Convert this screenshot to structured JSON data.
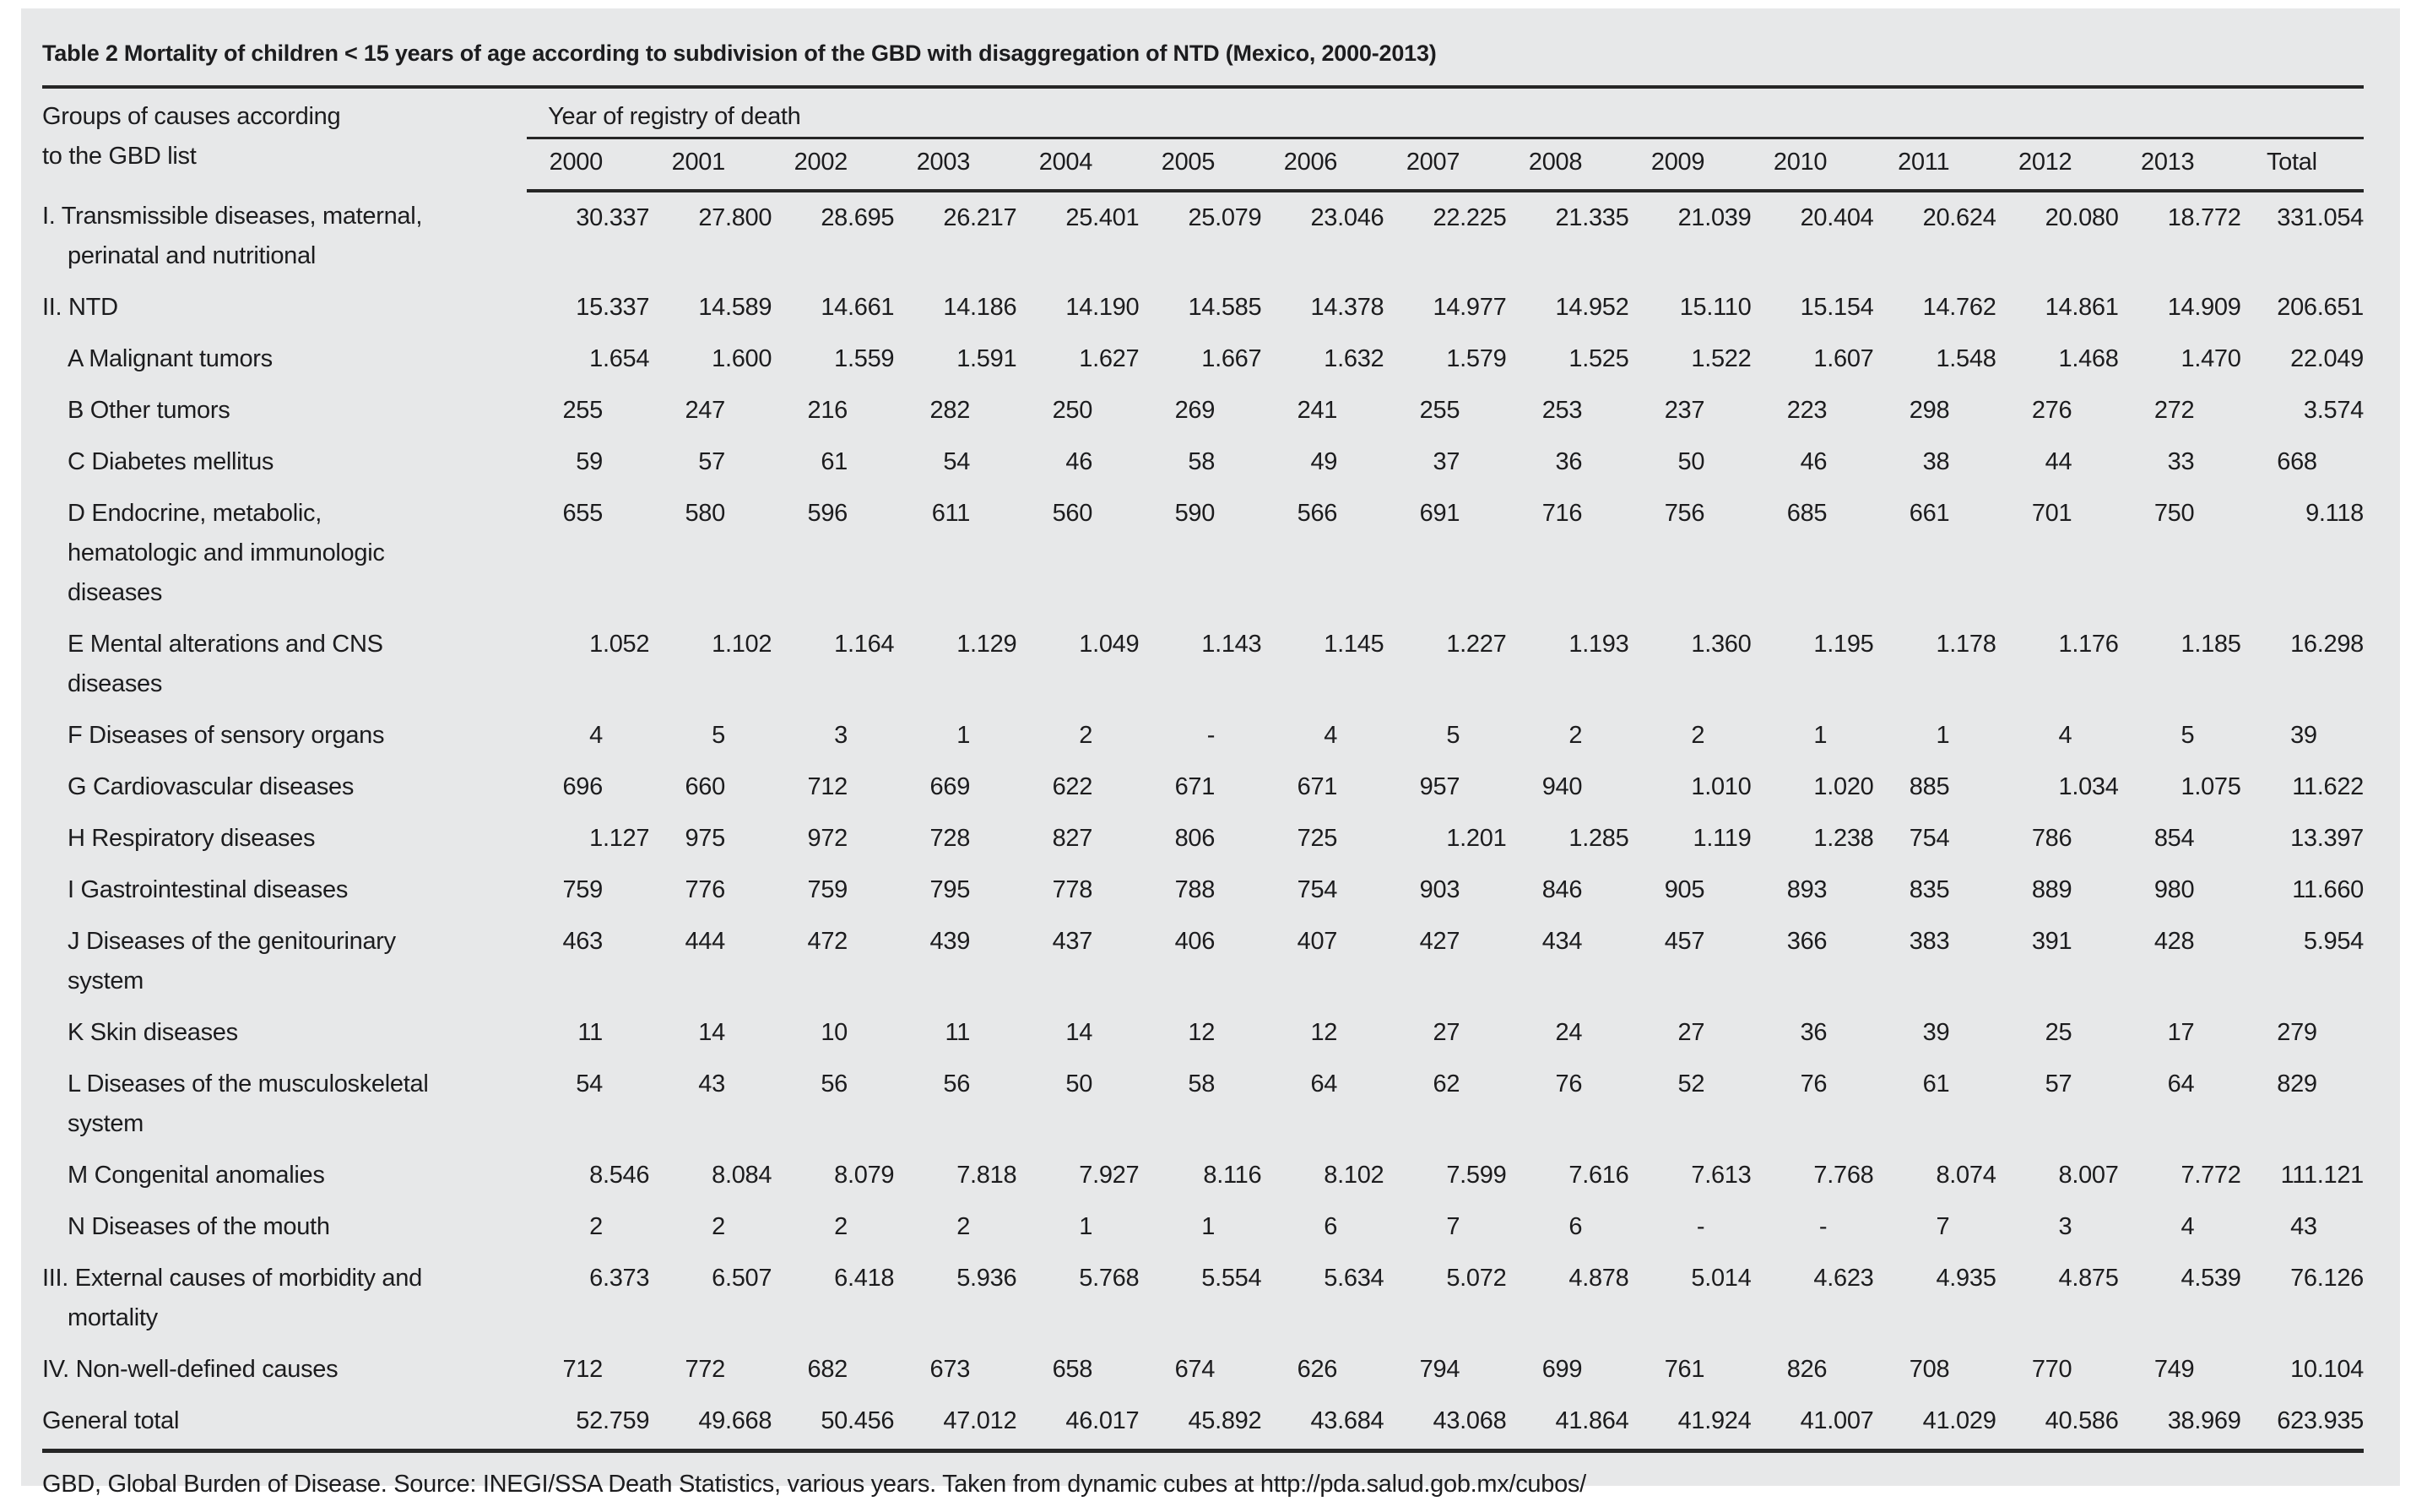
{
  "colors": {
    "page_bg": "#ffffff",
    "panel_bg": "#e7e8e9",
    "text": "#1c1c1e",
    "rule": "#262626"
  },
  "table": {
    "title": "Table 2 Mortality of children < 15 years of age according to subdivision of the GBD with disaggregation of NTD (Mexico, 2000-2013)",
    "row_header_line1": "Groups of causes according",
    "row_header_line2": "to the GBD list",
    "col_group_header": "Year of registry of death",
    "year_columns": [
      "2000",
      "2001",
      "2002",
      "2003",
      "2004",
      "2005",
      "2006",
      "2007",
      "2008",
      "2009",
      "2010",
      "2011",
      "2012",
      "2013",
      "Total"
    ],
    "rows": [
      {
        "level": "main",
        "lines": [
          "I. Transmissible diseases, maternal,",
          "perinatal and nutritional"
        ],
        "values": [
          "30.337",
          "27.800",
          "28.695",
          "26.217",
          "25.401",
          "25.079",
          "23.046",
          "22.225",
          "21.335",
          "21.039",
          "20.404",
          "20.624",
          "20.080",
          "18.772",
          "331.054"
        ]
      },
      {
        "level": "main",
        "lines": [
          "II. NTD"
        ],
        "values": [
          "15.337",
          "14.589",
          "14.661",
          "14.186",
          "14.190",
          "14.585",
          "14.378",
          "14.977",
          "14.952",
          "15.110",
          "15.154",
          "14.762",
          "14.861",
          "14.909",
          "206.651"
        ]
      },
      {
        "level": "sub",
        "lines": [
          "A Malignant tumors"
        ],
        "values": [
          "1.654",
          "1.600",
          "1.559",
          "1.591",
          "1.627",
          "1.667",
          "1.632",
          "1.579",
          "1.525",
          "1.522",
          "1.607",
          "1.548",
          "1.468",
          "1.470",
          "22.049"
        ]
      },
      {
        "level": "sub",
        "lines": [
          "B Other tumors"
        ],
        "values": [
          "255",
          "247",
          "216",
          "282",
          "250",
          "269",
          "241",
          "255",
          "253",
          "237",
          "223",
          "298",
          "276",
          "272",
          "3.574"
        ]
      },
      {
        "level": "sub",
        "lines": [
          "C Diabetes mellitus"
        ],
        "values": [
          "59",
          "57",
          "61",
          "54",
          "46",
          "58",
          "49",
          "37",
          "36",
          "50",
          "46",
          "38",
          "44",
          "33",
          "668"
        ]
      },
      {
        "level": "sub",
        "lines": [
          "D Endocrine, metabolic,",
          "hematologic and immunologic",
          "diseases"
        ],
        "values": [
          "655",
          "580",
          "596",
          "611",
          "560",
          "590",
          "566",
          "691",
          "716",
          "756",
          "685",
          "661",
          "701",
          "750",
          "9.118"
        ]
      },
      {
        "level": "sub",
        "lines": [
          "E Mental alterations and CNS",
          "diseases"
        ],
        "values": [
          "1.052",
          "1.102",
          "1.164",
          "1.129",
          "1.049",
          "1.143",
          "1.145",
          "1.227",
          "1.193",
          "1.360",
          "1.195",
          "1.178",
          "1.176",
          "1.185",
          "16.298"
        ]
      },
      {
        "level": "sub",
        "lines": [
          "F Diseases of sensory organs"
        ],
        "values": [
          "4",
          "5",
          "3",
          "1",
          "2",
          "-",
          "4",
          "5",
          "2",
          "2",
          "1",
          "1",
          "4",
          "5",
          "39"
        ]
      },
      {
        "level": "sub",
        "lines": [
          "G Cardiovascular diseases"
        ],
        "values": [
          "696",
          "660",
          "712",
          "669",
          "622",
          "671",
          "671",
          "957",
          "940",
          "1.010",
          "1.020",
          "885",
          "1.034",
          "1.075",
          "11.622"
        ]
      },
      {
        "level": "sub",
        "lines": [
          "H Respiratory diseases"
        ],
        "values": [
          "1.127",
          "975",
          "972",
          "728",
          "827",
          "806",
          "725",
          "1.201",
          "1.285",
          "1.119",
          "1.238",
          "754",
          "786",
          "854",
          "13.397"
        ]
      },
      {
        "level": "sub",
        "lines": [
          "I Gastrointestinal diseases"
        ],
        "values": [
          "759",
          "776",
          "759",
          "795",
          "778",
          "788",
          "754",
          "903",
          "846",
          "905",
          "893",
          "835",
          "889",
          "980",
          "11.660"
        ]
      },
      {
        "level": "sub",
        "lines": [
          "J Diseases of the genitourinary",
          "system"
        ],
        "values": [
          "463",
          "444",
          "472",
          "439",
          "437",
          "406",
          "407",
          "427",
          "434",
          "457",
          "366",
          "383",
          "391",
          "428",
          "5.954"
        ]
      },
      {
        "level": "sub",
        "lines": [
          "K Skin diseases"
        ],
        "values": [
          "11",
          "14",
          "10",
          "11",
          "14",
          "12",
          "12",
          "27",
          "24",
          "27",
          "36",
          "39",
          "25",
          "17",
          "279"
        ]
      },
      {
        "level": "sub",
        "lines": [
          "L Diseases of the musculoskeletal",
          "system"
        ],
        "values": [
          "54",
          "43",
          "56",
          "56",
          "50",
          "58",
          "64",
          "62",
          "76",
          "52",
          "76",
          "61",
          "57",
          "64",
          "829"
        ]
      },
      {
        "level": "sub",
        "lines": [
          "M Congenital anomalies"
        ],
        "values": [
          "8.546",
          "8.084",
          "8.079",
          "7.818",
          "7.927",
          "8.116",
          "8.102",
          "7.599",
          "7.616",
          "7.613",
          "7.768",
          "8.074",
          "8.007",
          "7.772",
          "111.121"
        ]
      },
      {
        "level": "sub",
        "lines": [
          "N Diseases of the mouth"
        ],
        "values": [
          "2",
          "2",
          "2",
          "2",
          "1",
          "1",
          "6",
          "7",
          "6",
          "-",
          "-",
          "7",
          "3",
          "4",
          "43"
        ]
      },
      {
        "level": "main",
        "lines": [
          "III. External causes of morbidity and",
          "mortality"
        ],
        "values": [
          "6.373",
          "6.507",
          "6.418",
          "5.936",
          "5.768",
          "5.554",
          "5.634",
          "5.072",
          "4.878",
          "5.014",
          "4.623",
          "4.935",
          "4.875",
          "4.539",
          "76.126"
        ]
      },
      {
        "level": "main",
        "lines": [
          "IV. Non-well-defined causes"
        ],
        "values": [
          "712",
          "772",
          "682",
          "673",
          "658",
          "674",
          "626",
          "794",
          "699",
          "761",
          "826",
          "708",
          "770",
          "749",
          "10.104"
        ]
      },
      {
        "level": "main",
        "lines": [
          "General total"
        ],
        "values": [
          "52.759",
          "49.668",
          "50.456",
          "47.012",
          "46.017",
          "45.892",
          "43.684",
          "43.068",
          "41.864",
          "41.924",
          "41.007",
          "41.029",
          "40.586",
          "38.969",
          "623.935"
        ]
      }
    ],
    "footer": "GBD, Global Burden of Disease. Source: INEGI/SSA Death Statistics, various years. Taken from dynamic cubes at http://pda.salud.gob.mx/cubos/"
  }
}
